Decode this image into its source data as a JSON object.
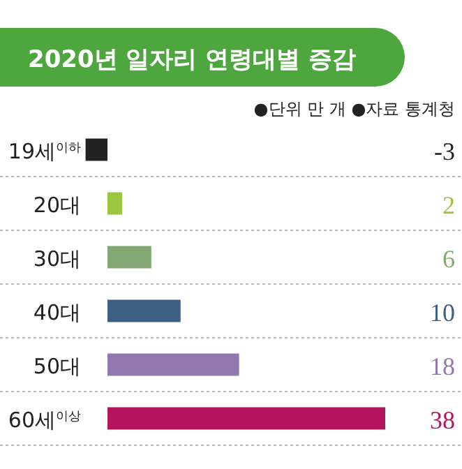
{
  "chart_data": {
    "type": "bar",
    "orientation": "horizontal",
    "title": "2020년 일자리 연령대별 증감",
    "annotations": [
      "●단위 만 개 ●자료 통계청"
    ],
    "categories": [
      "19세$^{이하}$",
      "20대",
      "30대",
      "40대",
      "50대",
      "60세$^{이상}$"
    ],
    "values": [
      -3,
      2,
      6,
      10,
      18,
      38
    ],
    "colors": [
      "#222222",
      "#9cc63c",
      "#84a874",
      "#3f5f82",
      "#9179b0",
      "#b3145e"
    ],
    "data_labels": true
  }
}
